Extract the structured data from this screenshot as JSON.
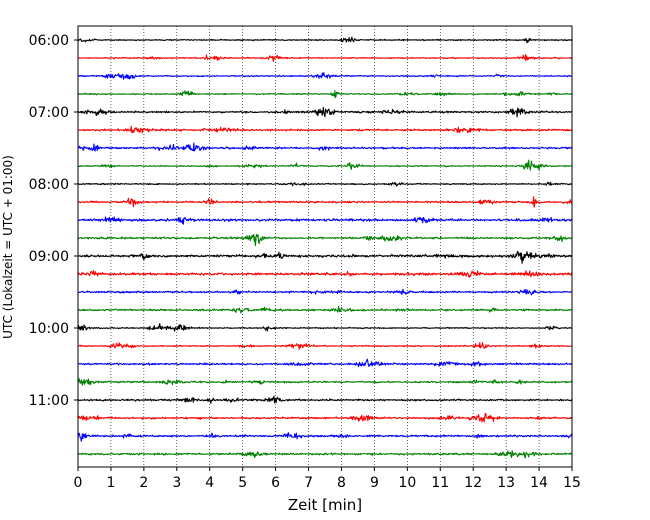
{
  "chart_data": {
    "type": "line",
    "title": "",
    "xlabel": "Zeit  [min]",
    "ylabel": "UTC (Lokalzeit = UTC + 01:00)",
    "xlim": [
      0,
      15
    ],
    "x_ticks": [
      "0",
      "1",
      "2",
      "3",
      "4",
      "5",
      "6",
      "7",
      "8",
      "9",
      "10",
      "11",
      "12",
      "13",
      "14",
      "15"
    ],
    "y_tick_labels": [
      "06:00",
      "07:00",
      "08:00",
      "09:00",
      "10:00",
      "11:00"
    ],
    "y_axis_order": "time increases downward",
    "grid": "vertical dotted lines at each minute",
    "legend": "none",
    "trace_interval_minutes": 15,
    "trace_start_times": [
      "06:00",
      "06:15",
      "06:30",
      "06:45",
      "07:00",
      "07:15",
      "07:30",
      "07:45",
      "08:00",
      "08:15",
      "08:30",
      "08:45",
      "09:00",
      "09:15",
      "09:30",
      "09:45",
      "10:00",
      "10:15",
      "10:30",
      "10:45",
      "11:00",
      "11:15",
      "11:30",
      "11:45"
    ],
    "trace_colors": [
      "#000000",
      "#ff0000",
      "#0000ff",
      "#008000"
    ],
    "trace_activity": [
      1,
      1,
      1,
      1,
      2,
      2,
      2,
      1,
      1,
      2,
      3,
      2,
      3,
      3,
      2,
      2,
      1,
      1,
      2,
      2,
      2,
      2,
      2,
      2
    ]
  }
}
